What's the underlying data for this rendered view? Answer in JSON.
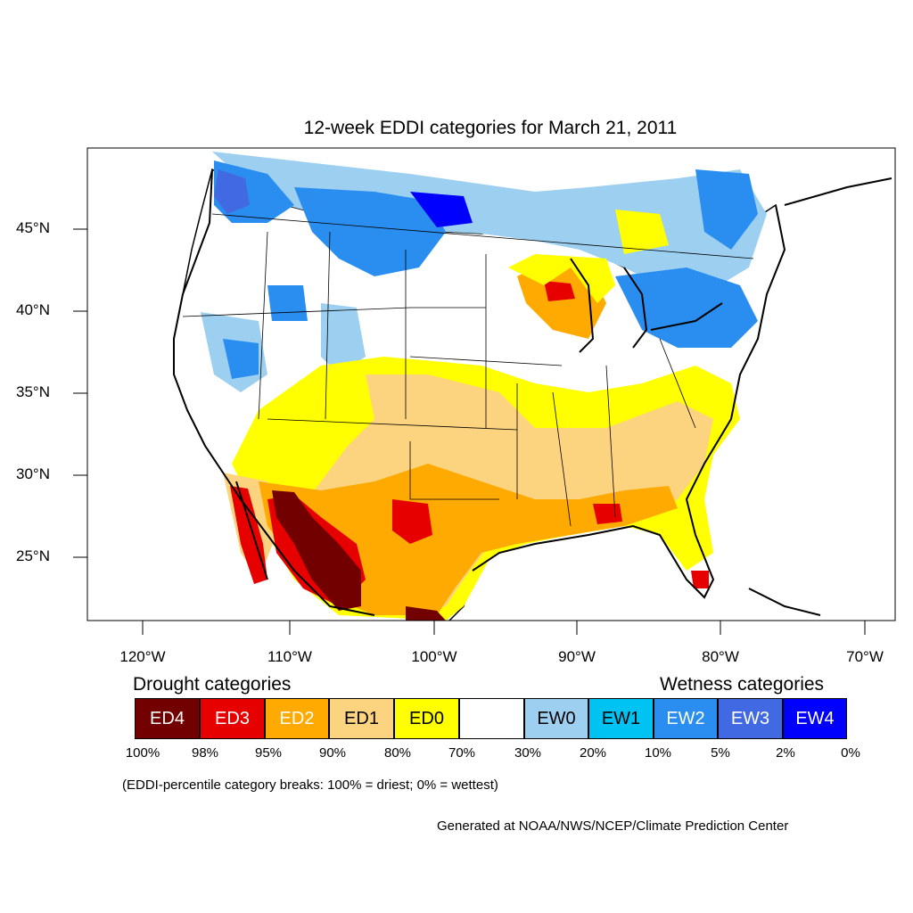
{
  "title": "12-week EDDI categories for March 21, 2011",
  "lat_labels": [
    "45°N",
    "40°N",
    "35°N",
    "30°N",
    "25°N"
  ],
  "lon_labels": [
    "120°W",
    "110°W",
    "100°W",
    "90°W",
    "80°W",
    "70°W"
  ],
  "legend": {
    "drought_heading": "Drought categories",
    "wetness_heading": "Wetness categories",
    "categories": [
      {
        "label": "ED4",
        "color": "#730000"
      },
      {
        "label": "ED3",
        "color": "#e60000"
      },
      {
        "label": "ED2",
        "color": "#ffaa00"
      },
      {
        "label": "ED1",
        "color": "#fcd37f"
      },
      {
        "label": "ED0",
        "color": "#ffff00"
      },
      {
        "label": "",
        "color": "#ffffff"
      },
      {
        "label": "EW0",
        "color": "#9dd0f0"
      },
      {
        "label": "EW1",
        "color": "#00c3f4"
      },
      {
        "label": "EW2",
        "color": "#2a8ef0"
      },
      {
        "label": "EW3",
        "color": "#4169e1"
      },
      {
        "label": "EW4",
        "color": "#0000ff"
      }
    ],
    "breaks": [
      "100%",
      "98%",
      "95%",
      "90%",
      "80%",
      "70%",
      "30%",
      "20%",
      "10%",
      "5%",
      "2%",
      "0%"
    ],
    "note": "(EDDI-percentile category breaks: 100% = driest; 0% = wettest)"
  },
  "credit": "Generated at NOAA/NWS/NCEP/Climate Prediction Center"
}
